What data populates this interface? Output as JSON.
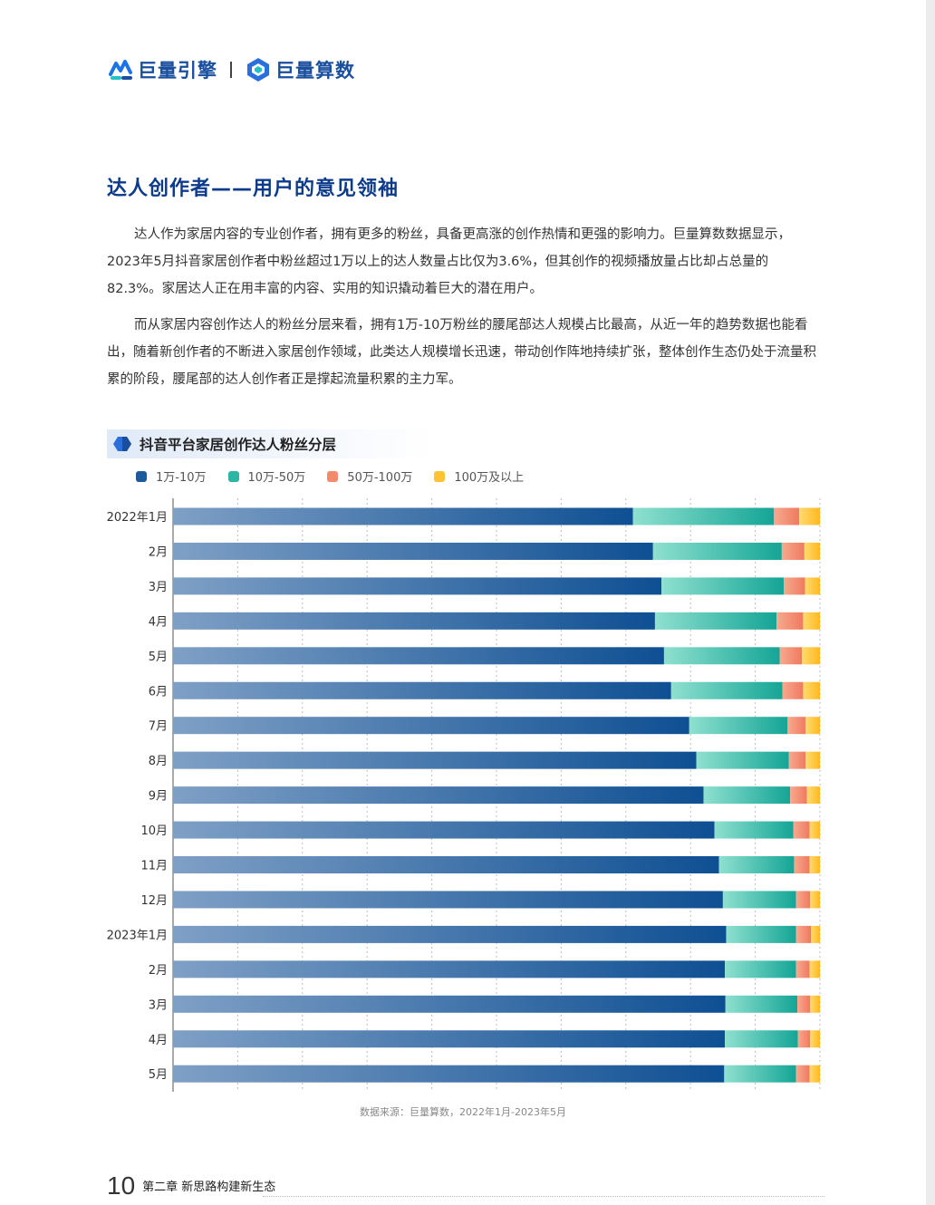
{
  "header": {
    "brand_left": "巨量引擎",
    "brand_right": "巨量算数"
  },
  "section_title": "达人创作者——用户的意见领袖",
  "paragraphs": [
    "达人作为家居内容的专业创作者，拥有更多的粉丝，具备更高涨的创作热情和更强的影响力。巨量算数数据显示，2023年5月抖音家居创作者中粉丝超过1万以上的达人数量占比仅为3.6%，但其创作的视频播放量占比却占总量的82.3%。家居达人正在用丰富的内容、实用的知识撬动着巨大的潜在用户。",
    "而从家居内容创作达人的粉丝分层来看，拥有1万-10万粉丝的腰尾部达人规模占比最高，从近一年的趋势数据也能看出，随着新创作者的不断进入家居创作领域，此类达人规模增长迅速，带动创作阵地持续扩张，整体创作生态仍处于流量积累的阶段，腰尾部的达人创作者正是撑起流量积累的主力军。"
  ],
  "chart_data": {
    "type": "bar",
    "orientation": "horizontal",
    "stacked": true,
    "normalized": true,
    "title": "抖音平台家居创作达人粉丝分层",
    "categories": [
      "2022年1月",
      "2月",
      "3月",
      "4月",
      "5月",
      "6月",
      "7月",
      "8月",
      "9月",
      "10月",
      "11月",
      "12月",
      "2023年1月",
      "2月",
      "3月",
      "4月",
      "5月"
    ],
    "series": [
      {
        "name": "1万-10万",
        "color": "#1d5a9c",
        "values": [
          71.1,
          74.2,
          75.5,
          74.5,
          75.9,
          77.0,
          79.8,
          80.9,
          82.0,
          83.7,
          84.4,
          85.0,
          85.5,
          85.3,
          85.4,
          85.3,
          85.2
        ]
      },
      {
        "name": "10万-50万",
        "color": "#2cb5a3",
        "values": [
          21.8,
          19.9,
          18.9,
          18.8,
          17.9,
          17.2,
          15.2,
          14.3,
          13.4,
          12.2,
          11.6,
          11.3,
          10.8,
          11.0,
          11.1,
          11.3,
          11.1
        ]
      },
      {
        "name": "50万-100万",
        "color": "#f28a6e",
        "values": [
          3.9,
          3.5,
          3.3,
          4.1,
          3.4,
          3.2,
          2.8,
          2.6,
          2.6,
          2.5,
          2.4,
          2.2,
          2.3,
          2.1,
          2.0,
          1.9,
          2.1
        ]
      },
      {
        "name": "100万及以上",
        "color": "#ffc233",
        "values": [
          3.2,
          2.4,
          2.3,
          2.6,
          2.8,
          2.6,
          2.2,
          2.2,
          2.0,
          1.6,
          1.6,
          1.5,
          1.4,
          1.6,
          1.5,
          1.5,
          1.6
        ]
      }
    ],
    "xlim": [
      0,
      100
    ],
    "grid": "vertical dashed",
    "legend": "top-left",
    "source": "数据来源：巨量算数，2022年1月-2023年5月"
  },
  "footer": {
    "page_number": "10",
    "chapter": "第二章  新思路构建新生态"
  }
}
